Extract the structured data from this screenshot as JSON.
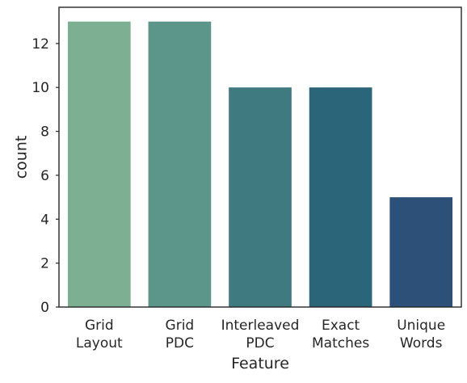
{
  "chart_data": {
    "type": "bar",
    "categories": [
      [
        "Grid",
        "Layout"
      ],
      [
        "Grid",
        "PDC"
      ],
      [
        "Interleaved",
        "PDC"
      ],
      [
        "Exact",
        "Matches"
      ],
      [
        "Unique",
        "Words"
      ]
    ],
    "values": [
      13,
      13,
      10,
      10,
      5
    ],
    "bar_colors": [
      "#7daf92",
      "#5c968a",
      "#3f7a80",
      "#2b6579",
      "#2d5078"
    ],
    "xlabel": "Feature",
    "ylabel": "count",
    "ylim": [
      0,
      13.65
    ],
    "yticks": [
      0,
      2,
      4,
      6,
      8,
      10,
      12
    ],
    "grid": false,
    "legend": "none"
  }
}
